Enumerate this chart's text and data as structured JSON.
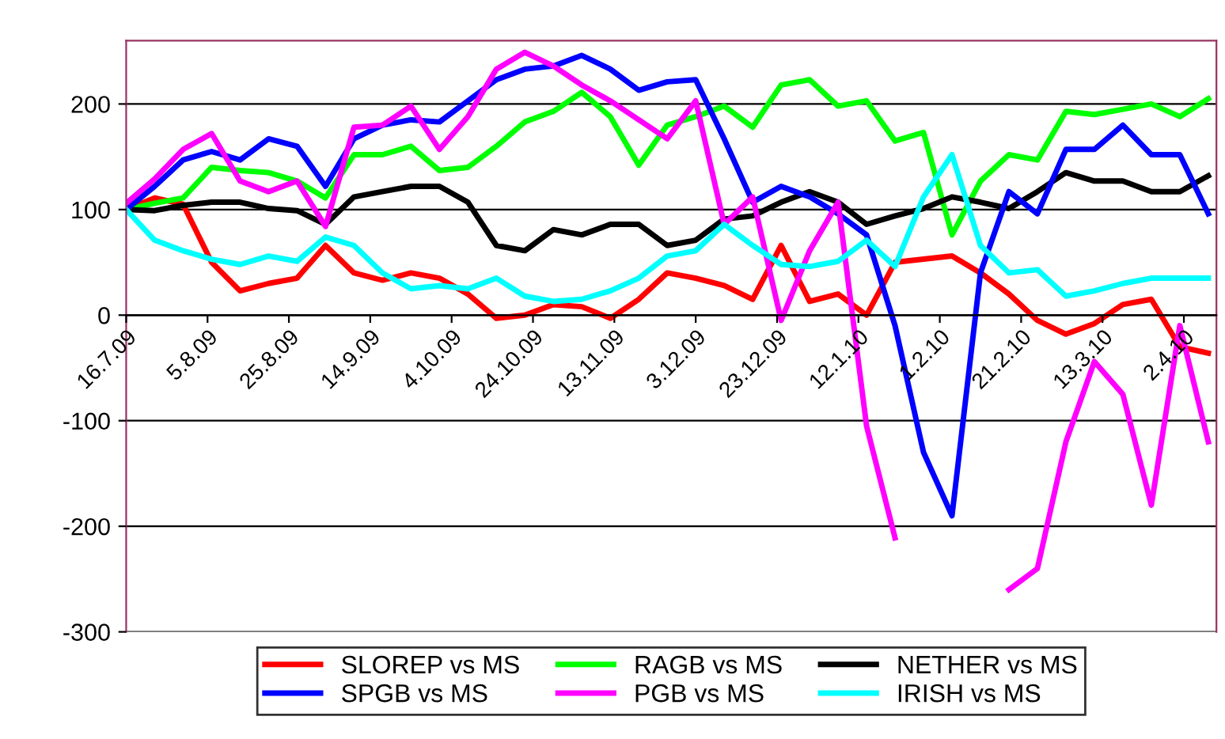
{
  "chart_data": {
    "type": "line",
    "x": [
      "2009-07-16",
      "2009-07-23",
      "2009-07-30",
      "2009-08-06",
      "2009-08-13",
      "2009-08-20",
      "2009-08-27",
      "2009-09-03",
      "2009-09-10",
      "2009-09-17",
      "2009-09-24",
      "2009-10-01",
      "2009-10-08",
      "2009-10-15",
      "2009-10-22",
      "2009-10-29",
      "2009-11-05",
      "2009-11-12",
      "2009-11-19",
      "2009-11-26",
      "2009-12-03",
      "2009-12-10",
      "2009-12-17",
      "2009-12-24",
      "2009-12-31",
      "2010-01-07",
      "2010-01-14",
      "2010-01-21",
      "2010-01-28",
      "2010-02-04",
      "2010-02-11",
      "2010-02-18",
      "2010-02-25",
      "2010-03-04",
      "2010-03-11",
      "2010-03-18",
      "2010-03-25",
      "2010-04-01",
      "2010-04-08"
    ],
    "series": [
      {
        "name": "SLOREP vs MS",
        "color": "#ff0000",
        "values": [
          100,
          111,
          105,
          50,
          23,
          30,
          35,
          66,
          40,
          33,
          40,
          35,
          20,
          -3,
          0,
          10,
          8,
          -3,
          15,
          40,
          35,
          28,
          15,
          66,
          13,
          20,
          0,
          50,
          53,
          56,
          40,
          20,
          -5,
          -18,
          -8,
          10,
          15,
          -30,
          -36
        ]
      },
      {
        "name": "RAGB vs MS",
        "color": "#00ff00",
        "values": [
          100,
          106,
          111,
          140,
          137,
          135,
          127,
          111,
          152,
          152,
          160,
          137,
          140,
          160,
          183,
          193,
          211,
          188,
          142,
          180,
          188,
          198,
          178,
          218,
          223,
          198,
          203,
          165,
          173,
          76,
          127,
          152,
          147,
          193,
          190,
          195,
          200,
          188,
          205
        ]
      },
      {
        "name": "NETHER vs MS",
        "color": "#000000",
        "values": [
          100,
          99,
          104,
          107,
          107,
          101,
          99,
          86,
          112,
          117,
          122,
          122,
          107,
          66,
          61,
          81,
          76,
          86,
          86,
          66,
          71,
          91,
          94,
          107,
          117,
          107,
          86,
          94,
          101,
          112,
          107,
          101,
          117,
          135,
          127,
          127,
          117,
          117,
          132
        ]
      },
      {
        "name": "SPGB vs MS",
        "color": "#0000ff",
        "values": [
          100,
          122,
          147,
          155,
          147,
          167,
          160,
          122,
          167,
          180,
          185,
          183,
          203,
          223,
          233,
          236,
          246,
          233,
          213,
          221,
          223,
          167,
          107,
          122,
          112,
          96,
          76,
          -10,
          -130,
          -190,
          40,
          117,
          96,
          157,
          157,
          180,
          152,
          152,
          96
        ]
      },
      {
        "name": "PGB vs MS",
        "color": "#ff00ff",
        "values": [
          106,
          129,
          157,
          172,
          127,
          117,
          127,
          84,
          178,
          180,
          198,
          157,
          188,
          233,
          249,
          236,
          218,
          203,
          185,
          167,
          203,
          86,
          112,
          -5,
          61,
          107,
          -105,
          -211,
          null,
          null,
          null,
          -260,
          -240,
          -120,
          -44,
          -75,
          -180,
          -10,
          -120
        ]
      },
      {
        "name": "IRISH vs MS",
        "color": "#00ffff",
        "values": [
          100,
          71,
          61,
          53,
          48,
          56,
          51,
          74,
          66,
          40,
          25,
          28,
          25,
          35,
          18,
          13,
          15,
          23,
          35,
          56,
          61,
          86,
          66,
          48,
          46,
          51,
          71,
          46,
          112,
          152,
          66,
          40,
          43,
          18,
          23,
          30,
          35,
          35,
          35
        ]
      }
    ],
    "xlim": [
      "2009-07-16",
      "2010-04-10"
    ],
    "xticks": [
      {
        "value": "2009-07-16",
        "label": "16.7.09"
      },
      {
        "value": "2009-08-05",
        "label": "5.8.09"
      },
      {
        "value": "2009-08-25",
        "label": "25.8.09"
      },
      {
        "value": "2009-09-14",
        "label": "14.9.09"
      },
      {
        "value": "2009-10-04",
        "label": "4.10.09"
      },
      {
        "value": "2009-10-24",
        "label": "24.10.09"
      },
      {
        "value": "2009-11-13",
        "label": "13.11.09"
      },
      {
        "value": "2009-12-03",
        "label": "3.12.09"
      },
      {
        "value": "2009-12-23",
        "label": "23.12.09"
      },
      {
        "value": "2010-01-12",
        "label": "12.1.10"
      },
      {
        "value": "2010-02-01",
        "label": "1.2.10"
      },
      {
        "value": "2010-02-21",
        "label": "21.2.10"
      },
      {
        "value": "2010-03-13",
        "label": "13.3.10"
      },
      {
        "value": "2010-04-02",
        "label": "2.4.10"
      }
    ],
    "ylim": [
      -300,
      260
    ],
    "yticks": [
      -300,
      -200,
      -100,
      0,
      100,
      200
    ],
    "grid": "y",
    "legend": "bottom",
    "line_style": "solid",
    "marker": "none"
  }
}
